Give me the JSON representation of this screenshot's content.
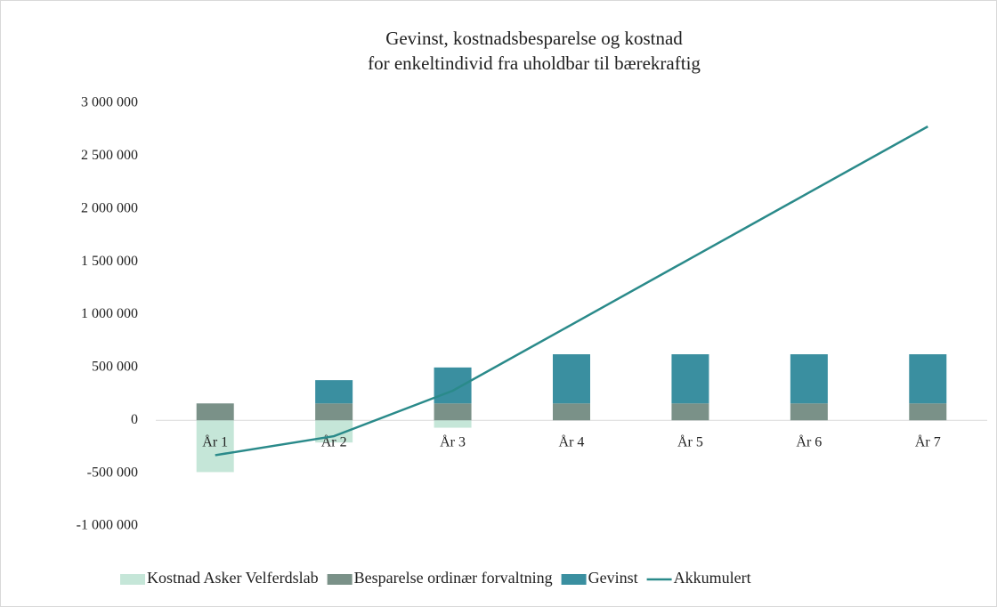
{
  "chart_data": {
    "type": "bar",
    "title": "Gevinst, kostnadsbesparelse og kostnad",
    "subtitle": "for enkeltindivid fra uholdbar til bærekraftig",
    "categories": [
      "År 1",
      "År 2",
      "År 3",
      "År 4",
      "År 5",
      "År 6",
      "År 7"
    ],
    "series": [
      {
        "name": "Kostnad Asker Velferdslab",
        "color": "#c5e6d8",
        "values": [
          -490000,
          -210000,
          -70000,
          0,
          0,
          0,
          0
        ]
      },
      {
        "name": "Besparelse ordinær forvaltning",
        "color": "#7a9188",
        "values": [
          160000,
          160000,
          160000,
          160000,
          160000,
          160000,
          160000
        ]
      },
      {
        "name": "Gevinst",
        "color": "#3a8fa0",
        "values": [
          0,
          220000,
          340000,
          465000,
          465000,
          465000,
          465000
        ]
      },
      {
        "name": "Akkumulert",
        "color": "#2a8a8a",
        "type": "line",
        "values": [
          -330000,
          -150000,
          280000,
          905000,
          1530000,
          2155000,
          2780000
        ]
      }
    ],
    "ylim": [
      -1000000,
      3000000
    ],
    "yticks": [
      {
        "value": -1000000,
        "label": "-1 000 000"
      },
      {
        "value": -500000,
        "label": "-500 000"
      },
      0,
      {
        "value": 500000,
        "label": "500 000"
      },
      {
        "value": 1000000,
        "label": "1 000 000"
      },
      {
        "value": 1500000,
        "label": "1 500 000"
      },
      {
        "value": 2000000,
        "label": "2 000 000"
      },
      {
        "value": 2500000,
        "label": "2 500 000"
      },
      {
        "value": 3000000,
        "label": "3 000 000"
      }
    ],
    "grid": false,
    "legend": "bottom"
  }
}
